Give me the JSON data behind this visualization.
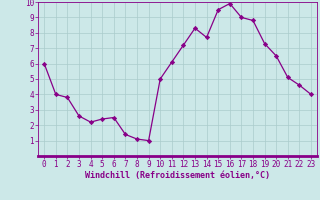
{
  "x": [
    0,
    1,
    2,
    3,
    4,
    5,
    6,
    7,
    8,
    9,
    10,
    11,
    12,
    13,
    14,
    15,
    16,
    17,
    18,
    19,
    20,
    21,
    22,
    23
  ],
  "y": [
    6.0,
    4.0,
    3.8,
    2.6,
    2.2,
    2.4,
    2.5,
    1.4,
    1.1,
    1.0,
    5.0,
    6.1,
    7.2,
    8.3,
    7.7,
    9.5,
    9.9,
    9.0,
    8.8,
    7.3,
    6.5,
    5.1,
    4.6,
    4.0
  ],
  "line_color": "#880088",
  "marker": "D",
  "marker_size": 2.2,
  "bg_color": "#cce8e8",
  "grid_color": "#aacccc",
  "xlabel": "Windchill (Refroidissement éolien,°C)",
  "xlabel_color": "#880088",
  "tick_color": "#880088",
  "spine_color": "#880088",
  "ylim": [
    0,
    10
  ],
  "xlim": [
    -0.5,
    23.5
  ],
  "xticks": [
    0,
    1,
    2,
    3,
    4,
    5,
    6,
    7,
    8,
    9,
    10,
    11,
    12,
    13,
    14,
    15,
    16,
    17,
    18,
    19,
    20,
    21,
    22,
    23
  ],
  "yticks": [
    1,
    2,
    3,
    4,
    5,
    6,
    7,
    8,
    9,
    10
  ],
  "tick_fontsize": 5.5,
  "xlabel_fontsize": 6.0
}
